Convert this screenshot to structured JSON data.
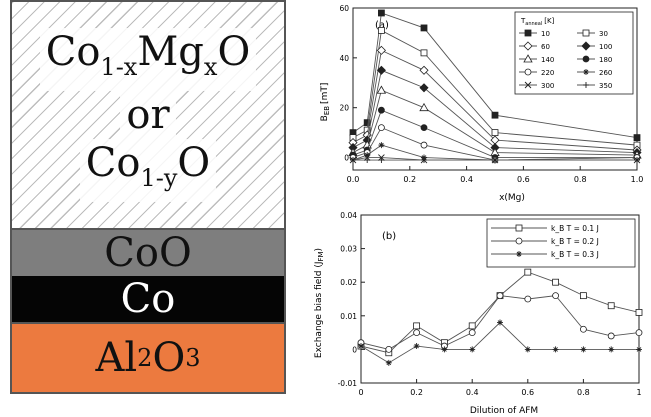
{
  "layer_diagram": {
    "top_layer_line1": "Co",
    "top_layer_line1_sub": "1-x",
    "top_layer_line1_mid": "Mg",
    "top_layer_line1_sub2": "x",
    "top_layer_line1_end": "O",
    "top_layer_line2": "or",
    "top_layer_line3": "Co",
    "top_layer_line3_sub": "1-y",
    "top_layer_line3_end": "O",
    "coo_label": "CoO",
    "co_label": "Co",
    "al_label": "Al",
    "al_sub1": "2",
    "al_mid": "O",
    "al_sub2": "3",
    "colors": {
      "coo": "#7e7e7e",
      "co": "#050505",
      "al2o3": "#ec7a3f"
    }
  },
  "chart_data": [
    {
      "type": "line",
      "panel_label": "(a)",
      "xlabel": "x(Mg)",
      "ylabel": "B",
      "ylabel_sub": "EB",
      "ylabel_unit": "[mT]",
      "xlim": [
        0,
        1.0
      ],
      "ylim": [
        -5,
        60
      ],
      "xticks": [
        "0.0",
        "0.2",
        "0.4",
        "0.6",
        "0.8",
        "1.0"
      ],
      "yticks": [
        "0",
        "20",
        "40",
        "60"
      ],
      "legend_header": "T_anneal [K]",
      "legend_header_main": "T",
      "legend_header_sub": "anneal",
      "legend_header_unit": "[K]",
      "legend_position": "top-right",
      "x": [
        0.0,
        0.05,
        0.1,
        0.25,
        0.5,
        1.0
      ],
      "series": [
        {
          "name": "10",
          "marker": "square-filled",
          "values": [
            10,
            14,
            58,
            52,
            17,
            8
          ]
        },
        {
          "name": "30",
          "marker": "square-open",
          "values": [
            8,
            11,
            51,
            42,
            10,
            5
          ]
        },
        {
          "name": "60",
          "marker": "diamond-open",
          "values": [
            6,
            9,
            43,
            35,
            7,
            3
          ]
        },
        {
          "name": "100",
          "marker": "diamond-filled",
          "values": [
            4,
            7,
            35,
            28,
            4,
            2
          ]
        },
        {
          "name": "140",
          "marker": "triangle-open",
          "values": [
            2,
            5,
            27,
            20,
            2,
            1
          ]
        },
        {
          "name": "180",
          "marker": "circle-filled",
          "values": [
            1,
            3,
            19,
            12,
            0,
            0
          ]
        },
        {
          "name": "220",
          "marker": "circle-open",
          "values": [
            0,
            2,
            12,
            5,
            -1,
            0
          ]
        },
        {
          "name": "260",
          "marker": "star",
          "values": [
            -1,
            1,
            5,
            0,
            -1,
            -1
          ]
        },
        {
          "name": "300",
          "marker": "cross",
          "values": [
            -1,
            0,
            0,
            -1,
            -1,
            -1
          ]
        },
        {
          "name": "350",
          "marker": "plus",
          "values": [
            -1,
            -1,
            -1,
            -1,
            -1,
            -1
          ]
        }
      ]
    },
    {
      "type": "line",
      "panel_label": "(b)",
      "xlabel": "Dilution of AFM",
      "ylabel": "Exchange bias field (J",
      "ylabel_sub": "FM",
      "ylabel_end": ")",
      "xlim": [
        0,
        1
      ],
      "ylim": [
        -0.01,
        0.04
      ],
      "xticks": [
        "0",
        "0.2",
        "0.4",
        "0.6",
        "0.8",
        "1"
      ],
      "yticks": [
        "-0.01",
        "0",
        "0.01",
        "0.02",
        "0.03",
        "0.04"
      ],
      "legend_position": "top-right",
      "x": [
        0.0,
        0.1,
        0.2,
        0.3,
        0.4,
        0.5,
        0.6,
        0.7,
        0.8,
        0.9,
        1.0
      ],
      "series": [
        {
          "name": "k_B T = 0.1 J",
          "marker": "square-open",
          "values": [
            0.001,
            -0.001,
            0.007,
            0.002,
            0.007,
            0.016,
            0.023,
            0.02,
            0.016,
            0.013,
            0.011
          ]
        },
        {
          "name": "k_B T = 0.2 J",
          "marker": "circle-open",
          "values": [
            0.002,
            0.0,
            0.005,
            0.001,
            0.005,
            0.016,
            0.015,
            0.016,
            0.006,
            0.004,
            0.005
          ]
        },
        {
          "name": "k_B T = 0.3 J",
          "marker": "star",
          "values": [
            0.001,
            -0.004,
            0.001,
            0.0,
            0.0,
            0.008,
            0.0,
            0.0,
            0.0,
            0.0,
            0.0
          ]
        }
      ]
    }
  ]
}
